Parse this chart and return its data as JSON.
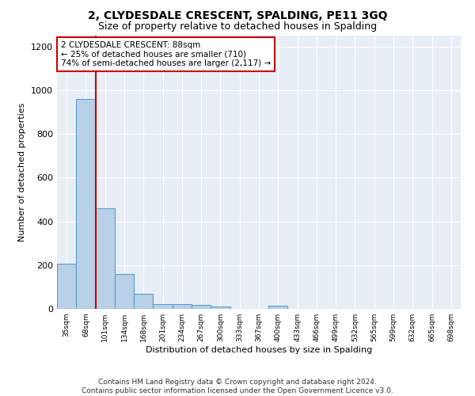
{
  "title": "2, CLYDESDALE CRESCENT, SPALDING, PE11 3GQ",
  "subtitle": "Size of property relative to detached houses in Spalding",
  "xlabel": "Distribution of detached houses by size in Spalding",
  "ylabel": "Number of detached properties",
  "bar_color": "#b8d0e8",
  "bar_edge_color": "#5a9fc8",
  "bg_color": "#e8eef6",
  "grid_color": "#ffffff",
  "annotation_box_color": "#cc0000",
  "red_line_color": "#cc0000",
  "categories": [
    "35sqm",
    "68sqm",
    "101sqm",
    "134sqm",
    "168sqm",
    "201sqm",
    "234sqm",
    "267sqm",
    "300sqm",
    "333sqm",
    "367sqm",
    "400sqm",
    "433sqm",
    "466sqm",
    "499sqm",
    "532sqm",
    "565sqm",
    "599sqm",
    "632sqm",
    "665sqm",
    "698sqm"
  ],
  "values": [
    205,
    960,
    460,
    160,
    68,
    23,
    20,
    18,
    12,
    0,
    0,
    15,
    0,
    0,
    0,
    0,
    0,
    0,
    0,
    0,
    0
  ],
  "ylim": [
    0,
    1250
  ],
  "yticks": [
    0,
    200,
    400,
    600,
    800,
    1000,
    1200
  ],
  "red_line_x": 1.5,
  "annotation_text": "2 CLYDESDALE CRESCENT: 88sqm\n← 25% of detached houses are smaller (710)\n74% of semi-detached houses are larger (2,117) →",
  "footer": "Contains HM Land Registry data © Crown copyright and database right 2024.\nContains public sector information licensed under the Open Government Licence v3.0.",
  "title_fontsize": 10,
  "subtitle_fontsize": 9,
  "annotation_fontsize": 7.5,
  "footer_fontsize": 6.5,
  "ylabel_fontsize": 8,
  "xlabel_fontsize": 8,
  "ytick_fontsize": 8,
  "xtick_fontsize": 6.5
}
